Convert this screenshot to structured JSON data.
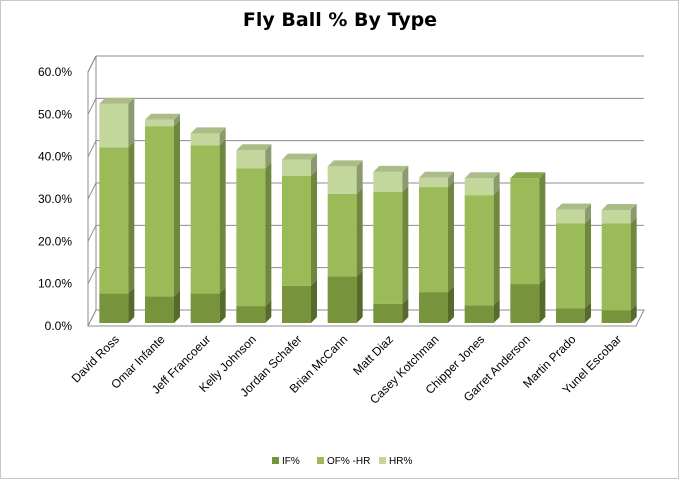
{
  "chart_data": {
    "type": "bar",
    "stacked": true,
    "style": "3d-column",
    "title": "Fly Ball % By Type",
    "xlabel": "",
    "ylabel": "",
    "ylim": [
      0,
      60
    ],
    "y_ticks": [
      "0.0%",
      "10.0%",
      "20.0%",
      "30.0%",
      "40.0%",
      "50.0%",
      "60.0%"
    ],
    "grid": true,
    "legend_position": "bottom",
    "categories": [
      "David Ross",
      "Omar Infante",
      "Jeff Francoeur",
      "Kelly Johnson",
      "Jordan Schafer",
      "Brian McCann",
      "Matt Diaz",
      "Casey Kotchman",
      "Chipper Jones",
      "Garret Anderson",
      "Martin Prado",
      "Yunel Escobar"
    ],
    "series": [
      {
        "name": "IF%",
        "color": "#77933c",
        "values": [
          7.0,
          6.3,
          7.0,
          4.0,
          8.8,
          11.0,
          4.5,
          7.3,
          4.2,
          9.2,
          3.5,
          3.0
        ]
      },
      {
        "name": "OF% -HR",
        "color": "#9bbb59",
        "values": [
          34.5,
          40.2,
          35.0,
          32.5,
          26.0,
          19.5,
          26.5,
          24.8,
          26.0,
          25.0,
          20.0,
          20.5
        ]
      },
      {
        "name": "HR%",
        "color": "#c3d69b",
        "values": [
          10.3,
          1.5,
          2.8,
          4.3,
          3.8,
          6.5,
          4.7,
          2.2,
          4.0,
          0.0,
          3.3,
          3.2
        ]
      }
    ]
  }
}
